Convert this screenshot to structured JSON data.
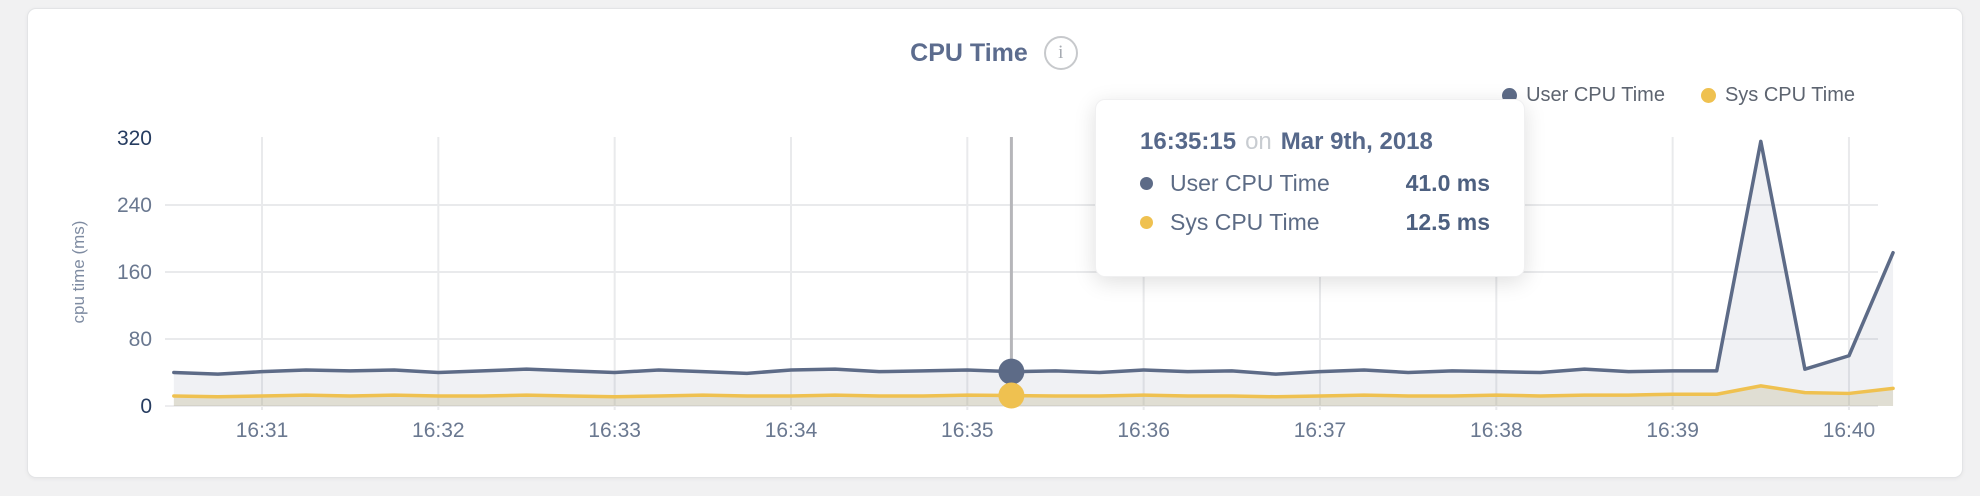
{
  "page": {
    "background": "#f1f1f2"
  },
  "header": {
    "title": "CPU Time",
    "info_glyph": "i"
  },
  "legend": {
    "items": [
      {
        "label": "User CPU Time",
        "color": "#5d6b87"
      },
      {
        "label": "Sys CPU Time",
        "color": "#efc150"
      }
    ]
  },
  "tooltip": {
    "time": "16:35:15",
    "connector": "on",
    "date": "Mar 9th, 2018",
    "rows": [
      {
        "label": "User CPU Time",
        "value": "41.0 ms",
        "color": "#5d6b87"
      },
      {
        "label": "Sys CPU Time",
        "value": "12.5 ms",
        "color": "#efc150"
      }
    ]
  },
  "chart_data": {
    "type": "area",
    "title": "CPU Time",
    "ylabel": "cpu time (ms)",
    "ylim": [
      0,
      320
    ],
    "yticks": [
      0,
      80,
      160,
      240,
      320
    ],
    "xticks": [
      "16:31",
      "16:32",
      "16:33",
      "16:34",
      "16:35",
      "16:36",
      "16:37",
      "16:38",
      "16:39",
      "16:40"
    ],
    "start_time": "16:30:30",
    "interval_seconds": 15,
    "grid": true,
    "legend_position": "top-right",
    "series": [
      {
        "name": "User CPU Time",
        "color": "#5d6b87",
        "fill": "rgba(110,122,150,0.10)",
        "values": [
          40,
          38,
          41,
          43,
          42,
          43,
          40,
          42,
          44,
          42,
          40,
          43,
          41,
          39,
          43,
          44,
          41,
          42,
          43,
          41,
          42,
          40,
          43,
          41,
          42,
          38,
          41,
          43,
          40,
          42,
          41,
          40,
          44,
          41,
          42,
          42,
          316,
          44,
          60,
          183
        ]
      },
      {
        "name": "Sys CPU Time",
        "color": "#efc150",
        "fill": "rgba(190,178,135,0.30)",
        "values": [
          12,
          11,
          12,
          13,
          12,
          13,
          12,
          12,
          13,
          12,
          11,
          12,
          13,
          12,
          12,
          13,
          12,
          12,
          13,
          12.5,
          12,
          12,
          13,
          12,
          12,
          11,
          12,
          13,
          12,
          12,
          13,
          12,
          13,
          13,
          14,
          14,
          24,
          16,
          15,
          21
        ]
      }
    ],
    "hover": {
      "time": "16:35:15",
      "date": "Mar 9th, 2018",
      "values": [
        41.0,
        12.5
      ]
    }
  }
}
